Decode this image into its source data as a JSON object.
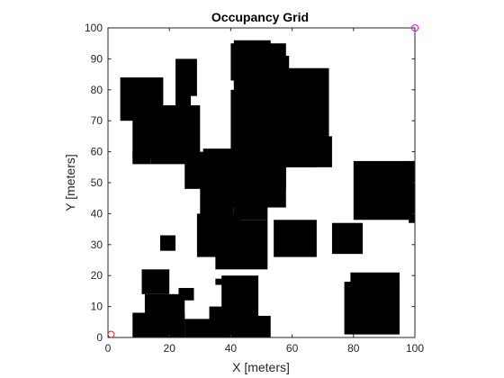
{
  "chart_data": {
    "type": "heatmap",
    "title": "Occupancy Grid",
    "xlabel": "X [meters]",
    "ylabel": "Y [meters]",
    "xlim": [
      0,
      100
    ],
    "ylim": [
      0,
      100
    ],
    "xticks": [
      0,
      20,
      40,
      60,
      80,
      100
    ],
    "yticks": [
      0,
      10,
      20,
      30,
      40,
      50,
      60,
      70,
      80,
      90,
      100
    ],
    "grid": false,
    "occupied_color": "#000000",
    "free_color": "#ffffff",
    "occupied_regions": [
      {
        "x0": 4,
        "x1": 18,
        "y0": 70,
        "y1": 84
      },
      {
        "x0": 8,
        "x1": 30,
        "y0": 58,
        "y1": 75
      },
      {
        "x0": 8,
        "x1": 14,
        "y0": 56,
        "y1": 60
      },
      {
        "x0": 14,
        "x1": 27,
        "y0": 56,
        "y1": 71
      },
      {
        "x0": 22,
        "x1": 29,
        "y0": 78,
        "y1": 90
      },
      {
        "x0": 22,
        "x1": 27,
        "y0": 74,
        "y1": 80
      },
      {
        "x0": 25,
        "x1": 38,
        "y0": 48,
        "y1": 60
      },
      {
        "x0": 31,
        "x1": 42,
        "y0": 49,
        "y1": 61
      },
      {
        "x0": 42,
        "x1": 45,
        "y0": 58,
        "y1": 60
      },
      {
        "x0": 30,
        "x1": 41,
        "y0": 38,
        "y1": 50
      },
      {
        "x0": 29,
        "x1": 43,
        "y0": 26,
        "y1": 40
      },
      {
        "x0": 35,
        "x1": 52,
        "y0": 22,
        "y1": 38
      },
      {
        "x0": 41,
        "x1": 52,
        "y0": 38,
        "y1": 48
      },
      {
        "x0": 40,
        "x1": 58,
        "y0": 42,
        "y1": 80
      },
      {
        "x0": 41,
        "x1": 53,
        "y0": 88,
        "y1": 96
      },
      {
        "x0": 40,
        "x1": 58,
        "y0": 83,
        "y1": 95
      },
      {
        "x0": 41,
        "x1": 59,
        "y0": 78,
        "y1": 91
      },
      {
        "x0": 48,
        "x1": 58,
        "y0": 48,
        "y1": 56
      },
      {
        "x0": 52,
        "x1": 72,
        "y0": 60,
        "y1": 87
      },
      {
        "x0": 55,
        "x1": 68,
        "y0": 55,
        "y1": 75
      },
      {
        "x0": 58,
        "x1": 73,
        "y0": 55,
        "y1": 65
      },
      {
        "x0": 17,
        "x1": 22,
        "y0": 28,
        "y1": 33
      },
      {
        "x0": 54,
        "x1": 68,
        "y0": 26,
        "y1": 38
      },
      {
        "x0": 73,
        "x1": 83,
        "y0": 27,
        "y1": 37
      },
      {
        "x0": 80,
        "x1": 100,
        "y0": 38,
        "y1": 57
      },
      {
        "x0": 98,
        "x1": 100,
        "y0": 37,
        "y1": 57
      },
      {
        "x0": 11,
        "x1": 20,
        "y0": 14,
        "y1": 22
      },
      {
        "x0": 8,
        "x1": 25,
        "y0": 0,
        "y1": 8
      },
      {
        "x0": 12,
        "x1": 25,
        "y0": 0,
        "y1": 14
      },
      {
        "x0": 23,
        "x1": 28,
        "y0": 12,
        "y1": 16
      },
      {
        "x0": 25,
        "x1": 35,
        "y0": 0,
        "y1": 6
      },
      {
        "x0": 33,
        "x1": 42,
        "y0": 0,
        "y1": 10
      },
      {
        "x0": 37,
        "x1": 49,
        "y0": 3,
        "y1": 20
      },
      {
        "x0": 35,
        "x1": 39,
        "y0": 17,
        "y1": 19
      },
      {
        "x0": 39,
        "x1": 53,
        "y0": 0,
        "y1": 7
      },
      {
        "x0": 77,
        "x1": 95,
        "y0": 1,
        "y1": 18
      },
      {
        "x0": 79,
        "x1": 95,
        "y0": 1,
        "y1": 21
      }
    ],
    "markers": [
      {
        "x": 1,
        "y": 1,
        "color": "#d62728",
        "shape": "circle"
      },
      {
        "x": 100,
        "y": 100,
        "color": "#ff00ff",
        "shape": "circle"
      }
    ]
  }
}
